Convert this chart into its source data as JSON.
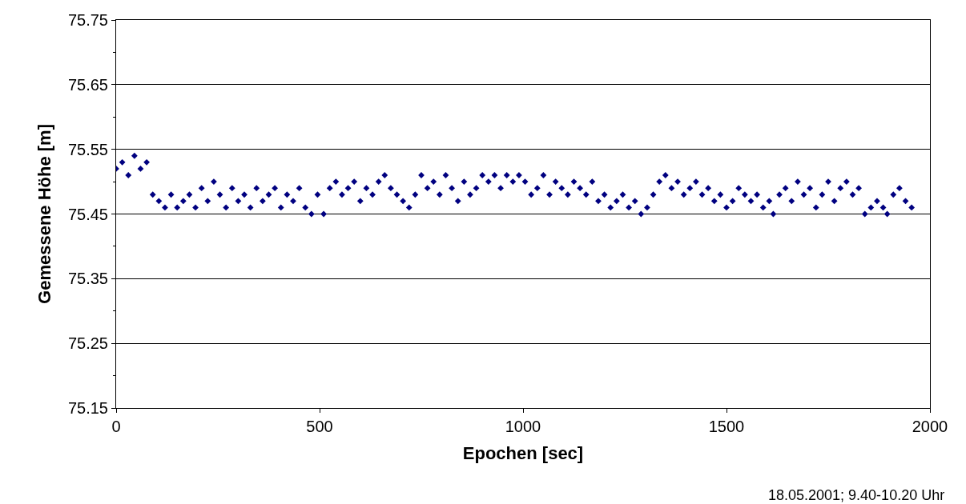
{
  "chart_data": {
    "type": "scatter",
    "xlabel": "Epochen [sec]",
    "ylabel": "Gemessene Höhe [m]",
    "annotations": [
      "18.05.2001; 9.40-10.20 Uhr"
    ],
    "x": [
      0,
      15,
      30,
      45,
      60,
      75,
      90,
      105,
      120,
      135,
      150,
      165,
      180,
      195,
      210,
      225,
      240,
      255,
      270,
      285,
      300,
      315,
      330,
      345,
      360,
      375,
      390,
      405,
      420,
      435,
      450,
      465,
      480,
      495,
      510,
      525,
      540,
      555,
      570,
      585,
      600,
      615,
      630,
      645,
      660,
      675,
      690,
      705,
      720,
      735,
      750,
      765,
      780,
      795,
      810,
      825,
      840,
      855,
      870,
      885,
      900,
      915,
      930,
      945,
      960,
      975,
      990,
      1005,
      1020,
      1035,
      1050,
      1065,
      1080,
      1095,
      1110,
      1125,
      1140,
      1155,
      1170,
      1185,
      1200,
      1215,
      1230,
      1245,
      1260,
      1275,
      1290,
      1305,
      1320,
      1335,
      1350,
      1365,
      1380,
      1395,
      1410,
      1425,
      1440,
      1455,
      1470,
      1485,
      1500,
      1515,
      1530,
      1545,
      1560,
      1575,
      1590,
      1605,
      1615,
      1630,
      1645,
      1660,
      1675,
      1690,
      1705,
      1720,
      1735,
      1750,
      1765,
      1780,
      1795,
      1810,
      1825,
      1840,
      1855,
      1870,
      1885,
      1895,
      1910,
      1925,
      1940,
      1955
    ],
    "series": [
      {
        "color": "#000080",
        "values": [
          75.52,
          75.53,
          75.51,
          75.54,
          75.52,
          75.53,
          75.48,
          75.47,
          75.46,
          75.48,
          75.46,
          75.47,
          75.48,
          75.46,
          75.49,
          75.47,
          75.5,
          75.48,
          75.46,
          75.49,
          75.47,
          75.48,
          75.46,
          75.49,
          75.47,
          75.48,
          75.49,
          75.46,
          75.48,
          75.47,
          75.49,
          75.46,
          75.45,
          75.48,
          75.45,
          75.49,
          75.5,
          75.48,
          75.49,
          75.5,
          75.47,
          75.49,
          75.48,
          75.5,
          75.51,
          75.49,
          75.48,
          75.47,
          75.46,
          75.48,
          75.51,
          75.49,
          75.5,
          75.48,
          75.51,
          75.49,
          75.47,
          75.5,
          75.48,
          75.49,
          75.51,
          75.5,
          75.51,
          75.49,
          75.51,
          75.5,
          75.51,
          75.5,
          75.48,
          75.49,
          75.51,
          75.48,
          75.5,
          75.49,
          75.48,
          75.5,
          75.49,
          75.48,
          75.5,
          75.47,
          75.48,
          75.46,
          75.47,
          75.48,
          75.46,
          75.47,
          75.45,
          75.46,
          75.48,
          75.5,
          75.51,
          75.49,
          75.5,
          75.48,
          75.49,
          75.5,
          75.48,
          75.49,
          75.47,
          75.48,
          75.46,
          75.47,
          75.49,
          75.48,
          75.47,
          75.48,
          75.46,
          75.47,
          75.45,
          75.48,
          75.49,
          75.47,
          75.5,
          75.48,
          75.49,
          75.46,
          75.48,
          75.5,
          75.47,
          75.49,
          75.5,
          75.48,
          75.49,
          75.45,
          75.46,
          75.47,
          75.46,
          75.45,
          75.48,
          75.49,
          75.47,
          75.46
        ]
      }
    ],
    "xlim": [
      0,
      2000
    ],
    "xticks": [
      0,
      500,
      1000,
      1500,
      2000
    ],
    "ylim": [
      75.15,
      75.75
    ],
    "yticks": [
      75.15,
      {
        "value": 75.2,
        "label": null
      },
      75.25,
      {
        "value": 75.3,
        "label": null
      },
      75.35,
      {
        "value": 75.4,
        "label": null
      },
      75.45,
      {
        "value": 75.5,
        "label": null
      },
      75.55,
      {
        "value": 75.6,
        "label": null
      },
      75.65,
      {
        "value": 75.7,
        "label": null
      },
      75.75
    ],
    "grid": "y",
    "marker": "diamond",
    "legend": false
  }
}
